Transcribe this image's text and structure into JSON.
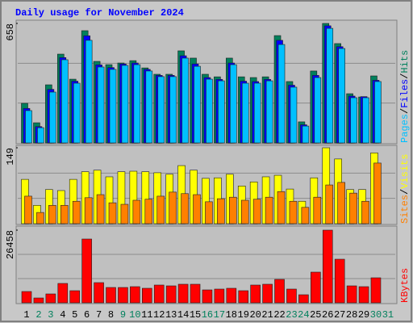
{
  "chart_data": [
    {
      "type": "bar",
      "title": "Daily usage for November 2024",
      "ylim": [
        0,
        658
      ],
      "yticks": [
        658
      ],
      "legend_separator": "/",
      "series": [
        {
          "name": "Hits",
          "color": "#00805c",
          "values": [
            218,
            111,
            320,
            489,
            351,
            618,
            449,
            431,
            440,
            453,
            413,
            378,
            378,
            507,
            467,
            378,
            364,
            467,
            364,
            360,
            364,
            591,
            338,
            116,
            396,
            658,
            547,
            271,
            253,
            369,
            null
          ]
        },
        {
          "name": "Files",
          "color": "#0000ff",
          "values": [
            190,
            90,
            295,
            470,
            340,
            590,
            430,
            415,
            435,
            440,
            405,
            372,
            372,
            480,
            435,
            360,
            350,
            440,
            340,
            338,
            350,
            565,
            318,
            100,
            372,
            645,
            530,
            258,
            255,
            345,
            null
          ]
        },
        {
          "name": "Pages",
          "color": "#00c0ff",
          "values": [
            178,
            84,
            280,
            458,
            329,
            565,
            418,
            405,
            427,
            431,
            396,
            365,
            365,
            467,
            422,
            351,
            342,
            431,
            329,
            329,
            342,
            542,
            307,
            93,
            360,
            631,
            520,
            249,
            249,
            338,
            null
          ]
        }
      ]
    },
    {
      "type": "bar",
      "ylim": [
        0,
        149
      ],
      "yticks": [
        149
      ],
      "legend_separator": "/",
      "series": [
        {
          "name": "Visits",
          "color": "#ffff00",
          "values": [
            87,
            36,
            67,
            65,
            87,
            102,
            105,
            92,
            102,
            103,
            102,
            100,
            97,
            114,
            105,
            89,
            90,
            97,
            74,
            82,
            92,
            95,
            68,
            44,
            90,
            149,
            127,
            67,
            67,
            139,
            null
          ]
        },
        {
          "name": "Sites",
          "color": "#ff8000",
          "values": [
            54,
            22,
            36,
            36,
            44,
            51,
            57,
            41,
            38,
            46,
            48,
            54,
            62,
            59,
            57,
            43,
            49,
            52,
            46,
            48,
            52,
            63,
            44,
            32,
            52,
            76,
            81,
            60,
            44,
            119,
            null
          ]
        }
      ]
    },
    {
      "type": "bar",
      "ylim": [
        0,
        26458
      ],
      "yticks": [
        26458
      ],
      "categories": [
        "1",
        "2",
        "3",
        "4",
        "5",
        "6",
        "7",
        "8",
        "9",
        "10",
        "11",
        "12",
        "13",
        "14",
        "15",
        "16",
        "17",
        "18",
        "19",
        "20",
        "21",
        "22",
        "23",
        "24",
        "25",
        "26",
        "27",
        "28",
        "29",
        "30",
        "31"
      ],
      "category_colors": [
        "#000000",
        "#00805c",
        "#00805c",
        "#000000",
        "#000000",
        "#000000",
        "#000000",
        "#000000",
        "#00805c",
        "#00805c",
        "#000000",
        "#000000",
        "#000000",
        "#000000",
        "#000000",
        "#00805c",
        "#00805c",
        "#000000",
        "#000000",
        "#000000",
        "#000000",
        "#000000",
        "#00805c",
        "#00805c",
        "#000000",
        "#000000",
        "#000000",
        "#000000",
        "#000000",
        "#00805c",
        "#00805c"
      ],
      "series": [
        {
          "name": "KBytes",
          "color": "#ff0000",
          "values": [
            4116,
            1764,
            3234,
            7056,
            4410,
            23224,
            7350,
            5586,
            5586,
            5880,
            5292,
            6468,
            6174,
            6762,
            6762,
            4704,
            4998,
            5292,
            4410,
            6468,
            6762,
            8526,
            4998,
            2940,
            11172,
            26458,
            15874,
            6174,
            5880,
            9113,
            null
          ]
        }
      ]
    }
  ]
}
